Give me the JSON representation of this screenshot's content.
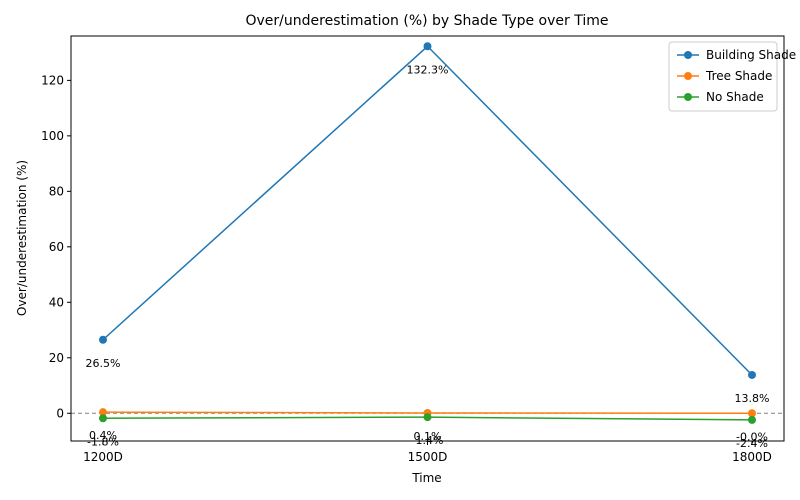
{
  "chart_data": {
    "type": "line",
    "title": "Over/underestimation (%) by Shade Type over Time",
    "xlabel": "Time",
    "ylabel": "Over/underestimation (%)",
    "categories": [
      "1200D",
      "1500D",
      "1800D"
    ],
    "ylim": [
      -10,
      136
    ],
    "yticks": [
      0,
      20,
      40,
      60,
      80,
      100,
      120
    ],
    "reference_line": 0,
    "legend_position": "top-right",
    "grid": false,
    "series": [
      {
        "name": "Building Shade",
        "color": "#1f77b4",
        "values": [
          26.5,
          132.3,
          13.8
        ],
        "labels": [
          "26.5%",
          "132.3%",
          "13.8%"
        ]
      },
      {
        "name": "Tree Shade",
        "color": "#ff7f0e",
        "values": [
          0.4,
          0.1,
          -0.0
        ],
        "labels": [
          "0.4%",
          "0.1%",
          "-0.0%"
        ]
      },
      {
        "name": "No Shade",
        "color": "#2ca02c",
        "values": [
          -1.8,
          -1.4,
          -2.4
        ],
        "labels": [
          "-1.8%",
          "-1.4%",
          "-2.4%"
        ]
      }
    ]
  }
}
